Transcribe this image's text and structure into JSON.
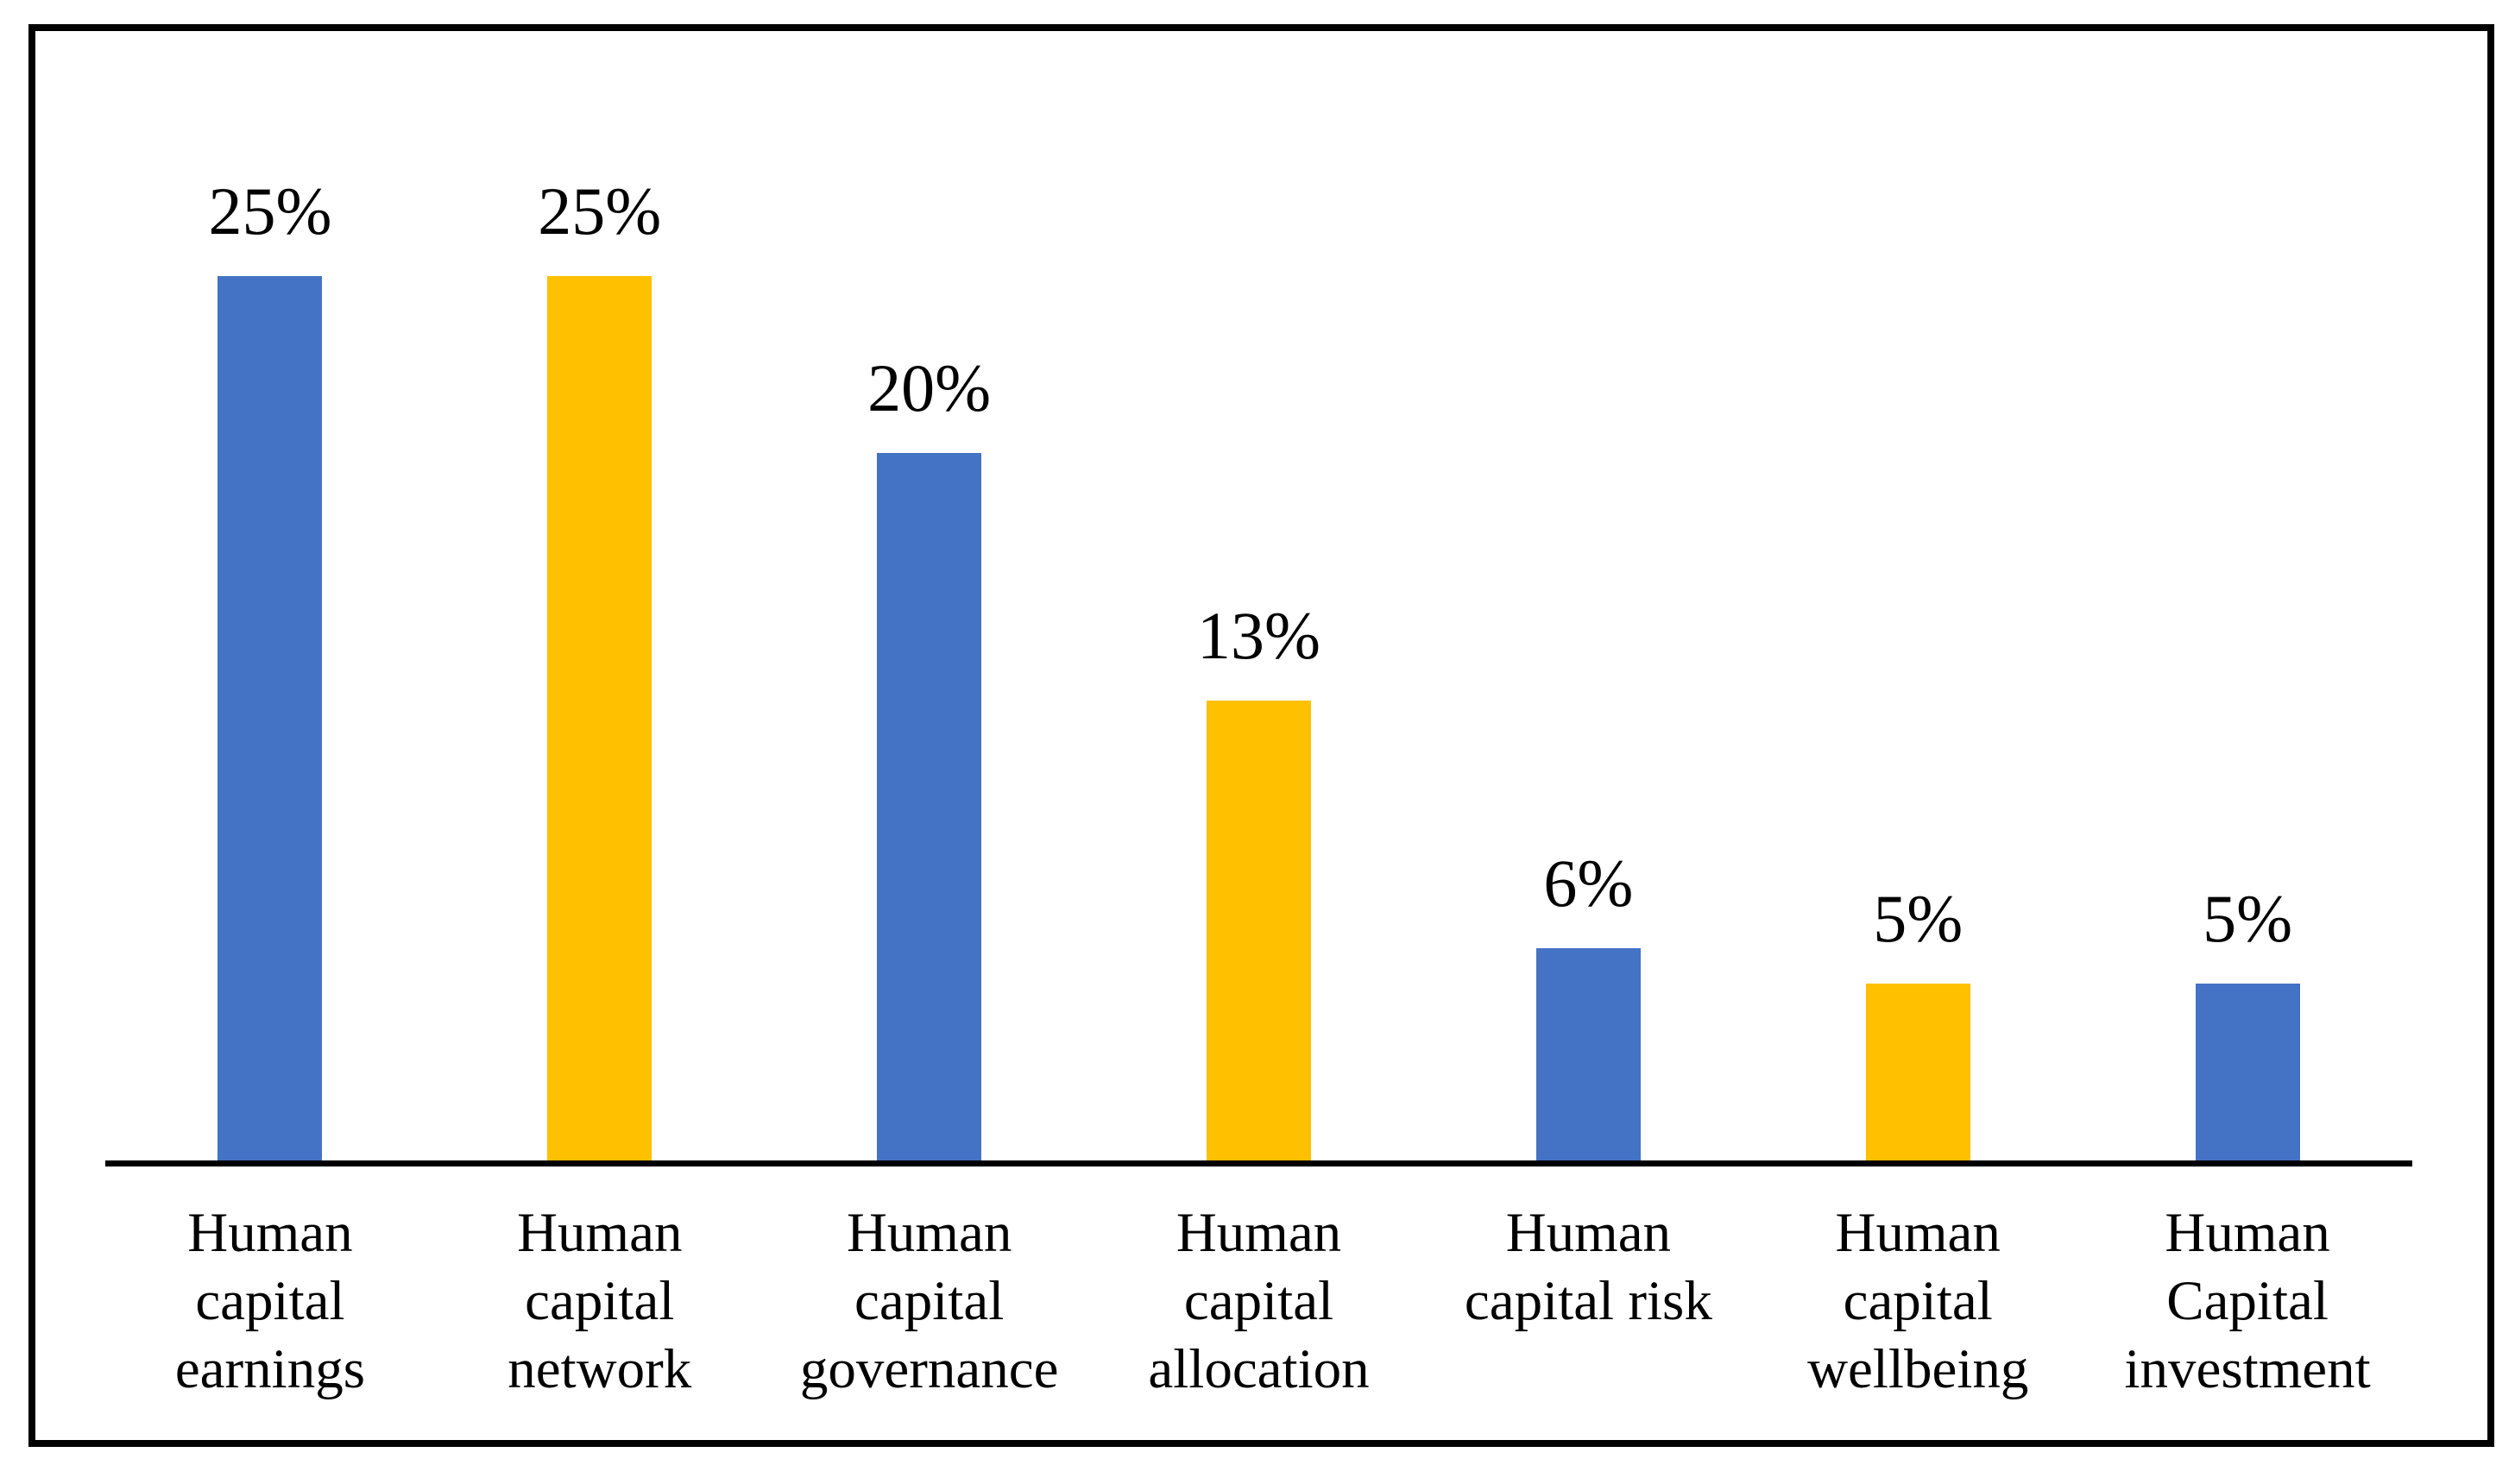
{
  "chart_data": {
    "type": "bar",
    "title": "",
    "xlabel": "",
    "ylabel": "",
    "categories": [
      "Human capital earnings",
      "Human capital network",
      "Human capital governance",
      "Human capital allocation",
      "Human capital risk",
      "Human capital wellbeing",
      "Human Capital investment"
    ],
    "category_label_lines": [
      [
        "Human",
        "capital",
        "earnings"
      ],
      [
        "Human",
        "capital",
        "network"
      ],
      [
        "Human",
        "capital",
        "governance"
      ],
      [
        "Human",
        "capital",
        "allocation"
      ],
      [
        "Human",
        "capital risk"
      ],
      [
        "Human",
        "capital",
        "wellbeing"
      ],
      [
        "Human",
        "Capital",
        "investment"
      ]
    ],
    "values": [
      25,
      25,
      20,
      13,
      6,
      5,
      5
    ],
    "value_labels": [
      "25%",
      "25%",
      "20%",
      "13%",
      "6%",
      "5%",
      "5%"
    ],
    "bar_colors": [
      "#4472C4",
      "#FFC000",
      "#4472C4",
      "#FFC000",
      "#4472C4",
      "#FFC000",
      "#4472C4"
    ],
    "palette": {
      "blue": "#4472C4",
      "gold": "#FFC000",
      "axis": "#000000",
      "frame": "#000000"
    },
    "ylim": [
      0,
      32
    ],
    "grid": false,
    "legend": false,
    "y_axis_visible": false,
    "data_labels_position": "above-bar"
  }
}
